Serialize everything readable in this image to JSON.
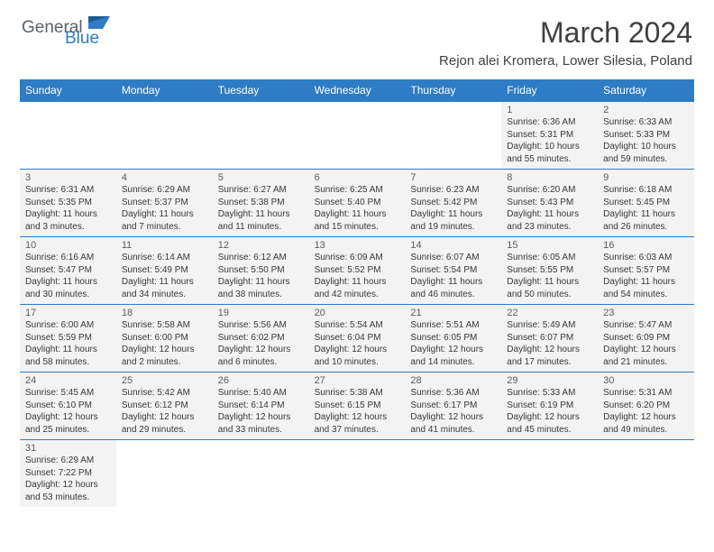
{
  "logo": {
    "word1": "General",
    "word2": "Blue"
  },
  "title": "March 2024",
  "location": "Rejon alei Kromera, Lower Silesia, Poland",
  "daynames_bg": "#2d7cc5",
  "daynames_color": "#ffffff",
  "cell_bg": "#f3f3f3",
  "border_color": "#2d7cc5",
  "text_color": "#383838",
  "daynum_color": "#5b5b5b",
  "daynames": [
    "Sunday",
    "Monday",
    "Tuesday",
    "Wednesday",
    "Thursday",
    "Friday",
    "Saturday"
  ],
  "weeks": [
    [
      null,
      null,
      null,
      null,
      null,
      {
        "n": "1",
        "sr": "Sunrise: 6:36 AM",
        "ss": "Sunset: 5:31 PM",
        "d1": "Daylight: 10 hours",
        "d2": "and 55 minutes."
      },
      {
        "n": "2",
        "sr": "Sunrise: 6:33 AM",
        "ss": "Sunset: 5:33 PM",
        "d1": "Daylight: 10 hours",
        "d2": "and 59 minutes."
      }
    ],
    [
      {
        "n": "3",
        "sr": "Sunrise: 6:31 AM",
        "ss": "Sunset: 5:35 PM",
        "d1": "Daylight: 11 hours",
        "d2": "and 3 minutes."
      },
      {
        "n": "4",
        "sr": "Sunrise: 6:29 AM",
        "ss": "Sunset: 5:37 PM",
        "d1": "Daylight: 11 hours",
        "d2": "and 7 minutes."
      },
      {
        "n": "5",
        "sr": "Sunrise: 6:27 AM",
        "ss": "Sunset: 5:38 PM",
        "d1": "Daylight: 11 hours",
        "d2": "and 11 minutes."
      },
      {
        "n": "6",
        "sr": "Sunrise: 6:25 AM",
        "ss": "Sunset: 5:40 PM",
        "d1": "Daylight: 11 hours",
        "d2": "and 15 minutes."
      },
      {
        "n": "7",
        "sr": "Sunrise: 6:23 AM",
        "ss": "Sunset: 5:42 PM",
        "d1": "Daylight: 11 hours",
        "d2": "and 19 minutes."
      },
      {
        "n": "8",
        "sr": "Sunrise: 6:20 AM",
        "ss": "Sunset: 5:43 PM",
        "d1": "Daylight: 11 hours",
        "d2": "and 23 minutes."
      },
      {
        "n": "9",
        "sr": "Sunrise: 6:18 AM",
        "ss": "Sunset: 5:45 PM",
        "d1": "Daylight: 11 hours",
        "d2": "and 26 minutes."
      }
    ],
    [
      {
        "n": "10",
        "sr": "Sunrise: 6:16 AM",
        "ss": "Sunset: 5:47 PM",
        "d1": "Daylight: 11 hours",
        "d2": "and 30 minutes."
      },
      {
        "n": "11",
        "sr": "Sunrise: 6:14 AM",
        "ss": "Sunset: 5:49 PM",
        "d1": "Daylight: 11 hours",
        "d2": "and 34 minutes."
      },
      {
        "n": "12",
        "sr": "Sunrise: 6:12 AM",
        "ss": "Sunset: 5:50 PM",
        "d1": "Daylight: 11 hours",
        "d2": "and 38 minutes."
      },
      {
        "n": "13",
        "sr": "Sunrise: 6:09 AM",
        "ss": "Sunset: 5:52 PM",
        "d1": "Daylight: 11 hours",
        "d2": "and 42 minutes."
      },
      {
        "n": "14",
        "sr": "Sunrise: 6:07 AM",
        "ss": "Sunset: 5:54 PM",
        "d1": "Daylight: 11 hours",
        "d2": "and 46 minutes."
      },
      {
        "n": "15",
        "sr": "Sunrise: 6:05 AM",
        "ss": "Sunset: 5:55 PM",
        "d1": "Daylight: 11 hours",
        "d2": "and 50 minutes."
      },
      {
        "n": "16",
        "sr": "Sunrise: 6:03 AM",
        "ss": "Sunset: 5:57 PM",
        "d1": "Daylight: 11 hours",
        "d2": "and 54 minutes."
      }
    ],
    [
      {
        "n": "17",
        "sr": "Sunrise: 6:00 AM",
        "ss": "Sunset: 5:59 PM",
        "d1": "Daylight: 11 hours",
        "d2": "and 58 minutes."
      },
      {
        "n": "18",
        "sr": "Sunrise: 5:58 AM",
        "ss": "Sunset: 6:00 PM",
        "d1": "Daylight: 12 hours",
        "d2": "and 2 minutes."
      },
      {
        "n": "19",
        "sr": "Sunrise: 5:56 AM",
        "ss": "Sunset: 6:02 PM",
        "d1": "Daylight: 12 hours",
        "d2": "and 6 minutes."
      },
      {
        "n": "20",
        "sr": "Sunrise: 5:54 AM",
        "ss": "Sunset: 6:04 PM",
        "d1": "Daylight: 12 hours",
        "d2": "and 10 minutes."
      },
      {
        "n": "21",
        "sr": "Sunrise: 5:51 AM",
        "ss": "Sunset: 6:05 PM",
        "d1": "Daylight: 12 hours",
        "d2": "and 14 minutes."
      },
      {
        "n": "22",
        "sr": "Sunrise: 5:49 AM",
        "ss": "Sunset: 6:07 PM",
        "d1": "Daylight: 12 hours",
        "d2": "and 17 minutes."
      },
      {
        "n": "23",
        "sr": "Sunrise: 5:47 AM",
        "ss": "Sunset: 6:09 PM",
        "d1": "Daylight: 12 hours",
        "d2": "and 21 minutes."
      }
    ],
    [
      {
        "n": "24",
        "sr": "Sunrise: 5:45 AM",
        "ss": "Sunset: 6:10 PM",
        "d1": "Daylight: 12 hours",
        "d2": "and 25 minutes."
      },
      {
        "n": "25",
        "sr": "Sunrise: 5:42 AM",
        "ss": "Sunset: 6:12 PM",
        "d1": "Daylight: 12 hours",
        "d2": "and 29 minutes."
      },
      {
        "n": "26",
        "sr": "Sunrise: 5:40 AM",
        "ss": "Sunset: 6:14 PM",
        "d1": "Daylight: 12 hours",
        "d2": "and 33 minutes."
      },
      {
        "n": "27",
        "sr": "Sunrise: 5:38 AM",
        "ss": "Sunset: 6:15 PM",
        "d1": "Daylight: 12 hours",
        "d2": "and 37 minutes."
      },
      {
        "n": "28",
        "sr": "Sunrise: 5:36 AM",
        "ss": "Sunset: 6:17 PM",
        "d1": "Daylight: 12 hours",
        "d2": "and 41 minutes."
      },
      {
        "n": "29",
        "sr": "Sunrise: 5:33 AM",
        "ss": "Sunset: 6:19 PM",
        "d1": "Daylight: 12 hours",
        "d2": "and 45 minutes."
      },
      {
        "n": "30",
        "sr": "Sunrise: 5:31 AM",
        "ss": "Sunset: 6:20 PM",
        "d1": "Daylight: 12 hours",
        "d2": "and 49 minutes."
      }
    ],
    [
      {
        "n": "31",
        "sr": "Sunrise: 6:29 AM",
        "ss": "Sunset: 7:22 PM",
        "d1": "Daylight: 12 hours",
        "d2": "and 53 minutes."
      },
      null,
      null,
      null,
      null,
      null,
      null
    ]
  ]
}
